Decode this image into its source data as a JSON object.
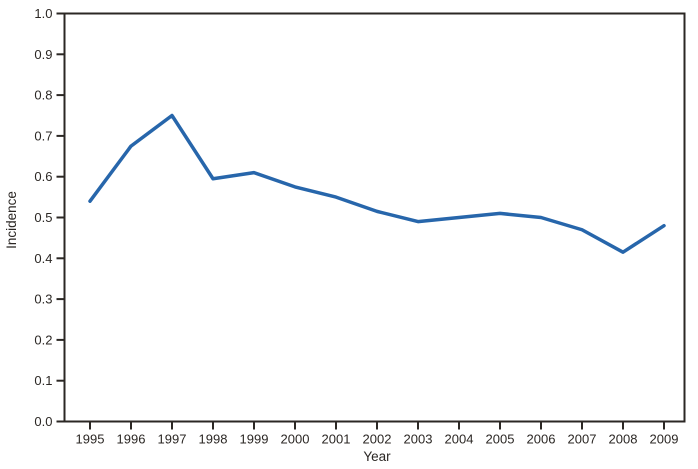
{
  "chart_data": {
    "type": "line",
    "title": "",
    "xlabel": "Year",
    "ylabel": "Incidence",
    "x": [
      1995,
      1996,
      1997,
      1998,
      1999,
      2000,
      2001,
      2002,
      2003,
      2004,
      2005,
      2006,
      2007,
      2008,
      2009
    ],
    "series": [
      {
        "name": "Incidence",
        "values": [
          0.54,
          0.675,
          0.75,
          0.595,
          0.61,
          0.575,
          0.55,
          0.515,
          0.49,
          0.5,
          0.51,
          0.5,
          0.47,
          0.415,
          0.48
        ]
      }
    ],
    "ylim": [
      0.0,
      1.0
    ],
    "yticks": [
      0.0,
      0.1,
      0.2,
      0.3,
      0.4,
      0.5,
      0.6,
      0.7,
      0.8,
      0.9,
      1.0
    ],
    "ytick_labels": [
      "0.0",
      "0.1",
      "0.2",
      "0.3",
      "0.4",
      "0.5",
      "0.6",
      "0.7",
      "0.8",
      "0.9",
      "1.0"
    ],
    "xtick_labels": [
      "1995",
      "1996",
      "1997",
      "1998",
      "1999",
      "2000",
      "2001",
      "2002",
      "2003",
      "2004",
      "2005",
      "2006",
      "2007",
      "2008",
      "2009"
    ],
    "grid": false,
    "legend": "none",
    "line_color": "#2766ab",
    "axis_color": "#2b2724"
  }
}
